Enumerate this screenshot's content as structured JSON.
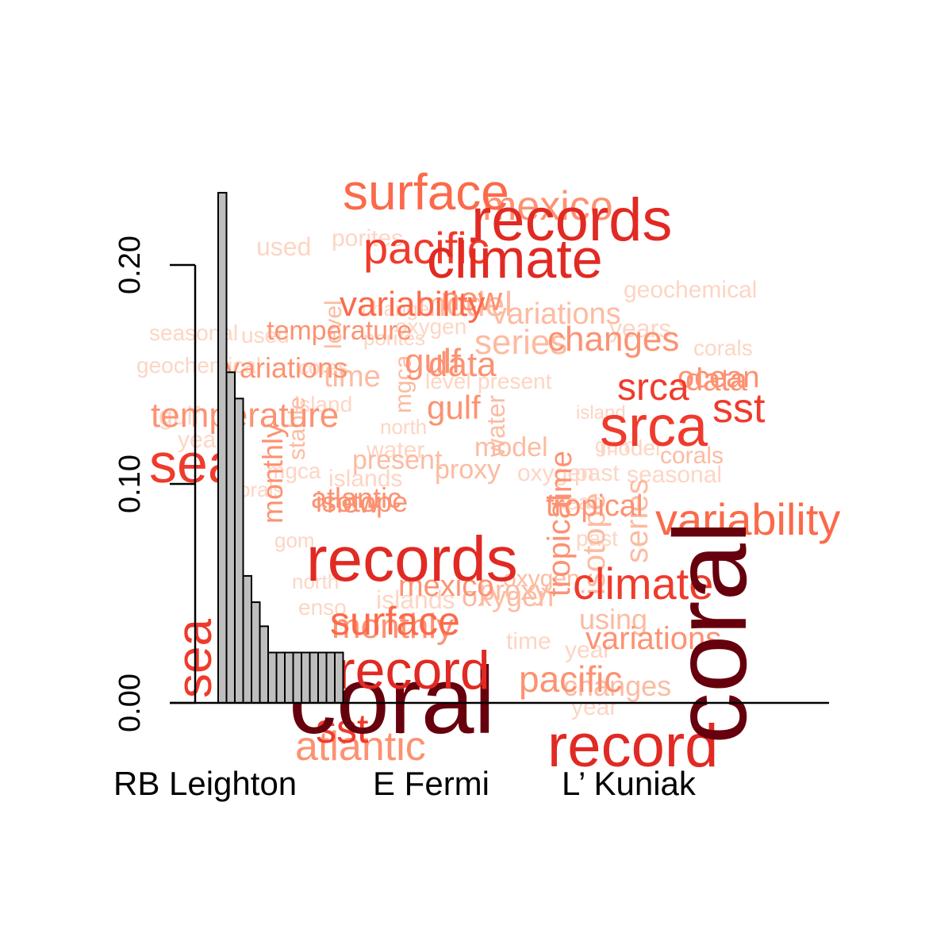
{
  "chart_data": {
    "type": "bar",
    "ylim": [
      0,
      0.23
    ],
    "yticks": [
      0.0,
      0.1,
      0.2
    ],
    "ytick_labels": [
      "0.00",
      "0.10",
      "0.20"
    ],
    "values": [
      0.233,
      0.151,
      0.139,
      0.058,
      0.046,
      0.035,
      0.023,
      0.023,
      0.023,
      0.023,
      0.023,
      0.023,
      0.023,
      0.023,
      0.023
    ],
    "bar_fill": "#bebebe",
    "bar_stroke": "#000000",
    "x_labels": [
      "RB Leighton",
      "E Fermi",
      "L’ Kuniak"
    ],
    "grid": false,
    "words": [
      {
        "text": "used",
        "color": "#fdd5c4"
      },
      {
        "text": "porites",
        "color": "#fdd5c4"
      },
      {
        "text": "geochemical",
        "color": "#fdd5c4"
      },
      {
        "text": "seasonal",
        "color": "#fdd5c4"
      },
      {
        "text": "used",
        "color": "#fdd5c4"
      },
      {
        "text": "oxygen",
        "color": "#fdd5c4"
      },
      {
        "text": "porites",
        "color": "#fdd5c4"
      },
      {
        "text": "change",
        "color": "#fdd5c4"
      },
      {
        "text": "geochemical",
        "color": "#fdd5c4"
      },
      {
        "text": "cores",
        "color": "#fdd5c4"
      },
      {
        "text": "level",
        "color": "#fdd5c4"
      },
      {
        "text": "present",
        "color": "#fdd5c4"
      },
      {
        "text": "corals",
        "color": "#fdd5c4"
      },
      {
        "text": "years",
        "color": "#fdd5c4"
      },
      {
        "text": "island",
        "color": "#fdd5c4"
      },
      {
        "text": "north",
        "color": "#fdd5c4"
      },
      {
        "text": "island",
        "color": "#fdd5c4"
      },
      {
        "text": "gulf",
        "color": "#fdd5c4"
      },
      {
        "text": "years",
        "color": "#fdd5c4"
      },
      {
        "text": "water",
        "color": "#fdd5c4"
      },
      {
        "text": "model",
        "color": "#fdd5c4"
      },
      {
        "text": "gom",
        "color": "#fdd5c4"
      },
      {
        "text": "mgca",
        "color": "#fdd5c4"
      },
      {
        "text": "corals",
        "color": "#fdd5c4"
      },
      {
        "text": "islands",
        "color": "#fdd5c4"
      },
      {
        "text": "oxygen",
        "color": "#fdd5c4"
      },
      {
        "text": "seasonal",
        "color": "#fdd5c4"
      },
      {
        "text": "past",
        "color": "#fdd5c4"
      },
      {
        "text": "mean",
        "color": "#fdd5c4"
      },
      {
        "text": "gom",
        "color": "#fdd5c4"
      },
      {
        "text": "north",
        "color": "#fdd5c4"
      },
      {
        "text": "past",
        "color": "#fdd5c4"
      },
      {
        "text": "enso",
        "color": "#fdd5c4"
      },
      {
        "text": "islands",
        "color": "#fdd5c4"
      },
      {
        "text": "year",
        "color": "#fdd5c4"
      },
      {
        "text": "year",
        "color": "#fdd5c4"
      },
      {
        "text": "time",
        "color": "#fdd5c4"
      },
      {
        "text": "present",
        "color": "#fcbba1"
      },
      {
        "text": "proxy",
        "color": "#fcbba1"
      },
      {
        "text": "model",
        "color": "#fcbba1"
      },
      {
        "text": "oxygen",
        "color": "#fcbba1"
      },
      {
        "text": "water",
        "color": "#fcbba1"
      },
      {
        "text": "mgca",
        "color": "#fcbba1"
      },
      {
        "text": "stable",
        "color": "#fcbba1"
      },
      {
        "text": "level",
        "color": "#fcbba1"
      },
      {
        "text": "isotope",
        "color": "#fcbba1"
      },
      {
        "text": "series",
        "color": "#fcbba1"
      },
      {
        "text": "oxygen",
        "color": "#fcbba1"
      },
      {
        "text": "proxy",
        "color": "#fcbba1"
      },
      {
        "text": "using",
        "color": "#fcbba1"
      },
      {
        "text": "changes",
        "color": "#fcbba1"
      },
      {
        "text": "corals",
        "color": "#fcbba1"
      },
      {
        "text": "model",
        "color": "#fcbba1"
      },
      {
        "text": "variations",
        "color": "#fcbba1"
      },
      {
        "text": "series",
        "color": "#fcbba1"
      },
      {
        "text": "time",
        "color": "#fcbba1"
      },
      {
        "text": "gulf",
        "color": "#fc9272"
      },
      {
        "text": "ocean",
        "color": "#fc9272"
      },
      {
        "text": "temperature",
        "color": "#fc9272"
      },
      {
        "text": "variations",
        "color": "#fc9272"
      },
      {
        "text": "changes",
        "color": "#fc9272"
      },
      {
        "text": "isotope",
        "color": "#fc9272"
      },
      {
        "text": "new",
        "color": "#fc9272"
      },
      {
        "text": "mexico",
        "color": "#fc9272"
      },
      {
        "text": "monthly",
        "color": "#fc9272"
      },
      {
        "text": "time",
        "color": "#fc9272"
      },
      {
        "text": "gulf",
        "color": "#fc9272"
      },
      {
        "text": "data",
        "color": "#fc9272"
      },
      {
        "text": "monthly",
        "color": "#fc9272"
      },
      {
        "text": "atlantic",
        "color": "#fc9272"
      },
      {
        "text": "tropical",
        "color": "#fc9272"
      },
      {
        "text": "tropical",
        "color": "#fc9272"
      },
      {
        "text": "pacific",
        "color": "#fc9272"
      },
      {
        "text": "temperature",
        "color": "#fc9272"
      },
      {
        "text": "atlantic",
        "color": "#fc9272"
      },
      {
        "text": "new",
        "color": "#fc9272"
      },
      {
        "text": "variability",
        "color": "#fb6a4a"
      },
      {
        "text": "variations",
        "color": "#fc9272"
      },
      {
        "text": "data",
        "color": "#fc9272"
      },
      {
        "text": "mexico",
        "color": "#fc9272"
      },
      {
        "text": "surface",
        "color": "#fb6a4a"
      },
      {
        "text": "srca",
        "color": "#ef3b2c"
      },
      {
        "text": "sst",
        "color": "#ef3b2c"
      },
      {
        "text": "sst",
        "color": "#ef3b2c"
      },
      {
        "text": "variability",
        "color": "#fb6a4a"
      },
      {
        "text": "surface",
        "color": "#fb6a4a"
      },
      {
        "text": "pacific",
        "color": "#ef3b2c"
      },
      {
        "text": "climate",
        "color": "#ef3b2c"
      },
      {
        "text": "srca",
        "color": "#ef3b2c"
      },
      {
        "text": "sea",
        "color": "#ef3b2c"
      },
      {
        "text": "sea",
        "color": "#ef3b2c"
      },
      {
        "text": "climate",
        "color": "#e02a23"
      },
      {
        "text": "records",
        "color": "#e02a23"
      },
      {
        "text": "records",
        "color": "#e02a23"
      },
      {
        "text": "record",
        "color": "#e02a23"
      },
      {
        "text": "coral",
        "color": "#67000d"
      },
      {
        "text": "record",
        "color": "#e02a23"
      },
      {
        "text": "coral",
        "color": "#67000d"
      }
    ]
  }
}
